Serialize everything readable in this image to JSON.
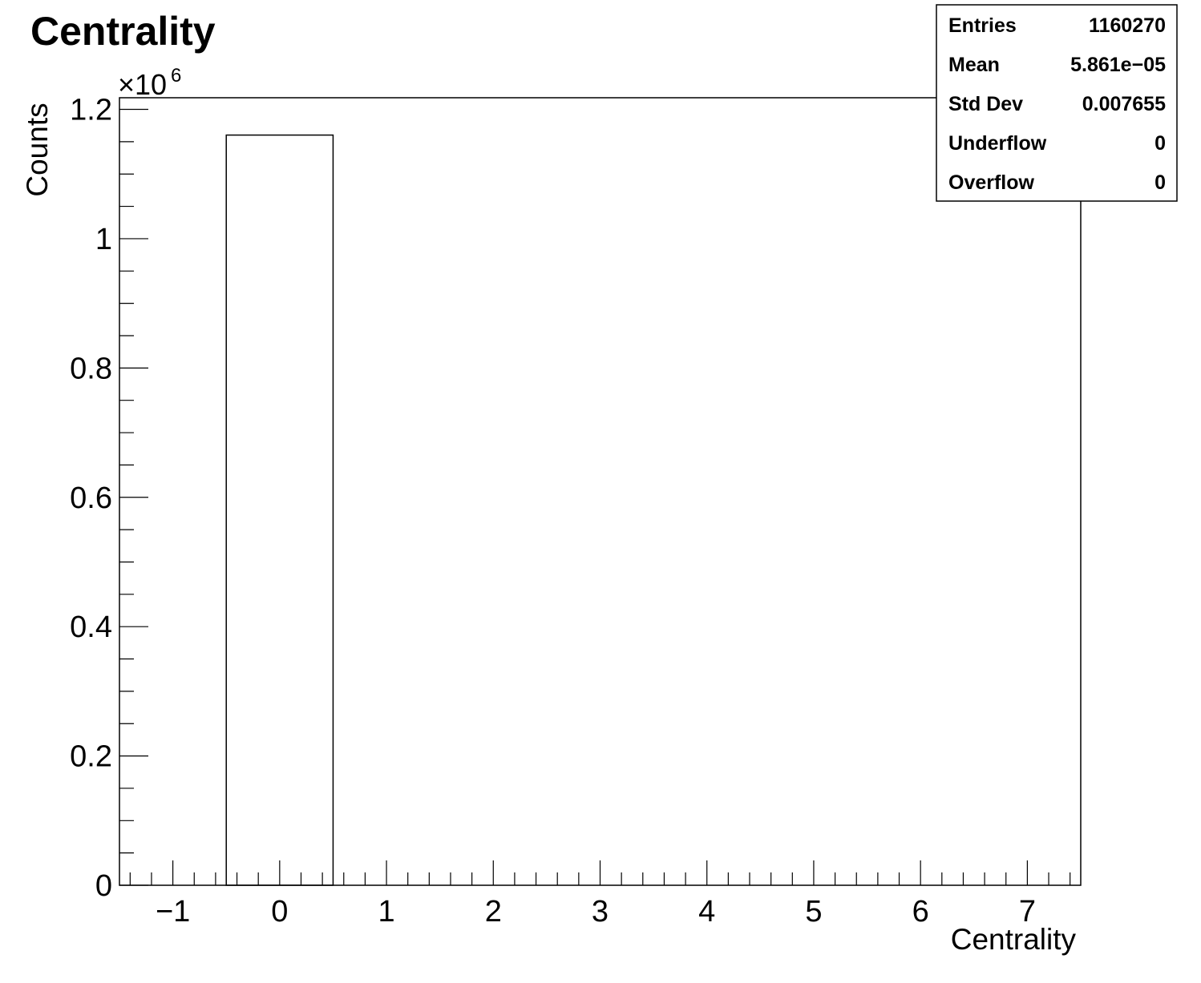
{
  "chart_data": {
    "type": "bar",
    "title": "Centrality",
    "xlabel": "Centrality",
    "ylabel": "Counts",
    "y_multiplier_base": "×10",
    "y_multiplier_exponent": "6",
    "xlim": [
      -1.5,
      7.5
    ],
    "ylim": [
      0,
      1.218
    ],
    "grid": false,
    "bins": [
      {
        "low": -0.5,
        "high": 0.5,
        "value": 1.16027
      }
    ],
    "x_ticks": [
      {
        "value": -1,
        "label": "−1"
      },
      {
        "value": 0,
        "label": "0"
      },
      {
        "value": 1,
        "label": "1"
      },
      {
        "value": 2,
        "label": "2"
      },
      {
        "value": 3,
        "label": "3"
      },
      {
        "value": 4,
        "label": "4"
      },
      {
        "value": 5,
        "label": "5"
      },
      {
        "value": 6,
        "label": "6"
      },
      {
        "value": 7,
        "label": "7"
      }
    ],
    "y_ticks": [
      {
        "value": 0,
        "label": "0"
      },
      {
        "value": 0.2,
        "label": "0.2"
      },
      {
        "value": 0.4,
        "label": "0.4"
      },
      {
        "value": 0.6,
        "label": "0.6"
      },
      {
        "value": 0.8,
        "label": "0.8"
      },
      {
        "value": 1.0,
        "label": "1"
      },
      {
        "value": 1.2,
        "label": "1.2"
      }
    ],
    "stats_box": {
      "placement": "top-right",
      "rows": [
        {
          "label": "Entries",
          "value": "1160270"
        },
        {
          "label": "Mean",
          "value": "5.861e−05"
        },
        {
          "label": "Std Dev",
          "value": "0.007655"
        },
        {
          "label": "Underflow",
          "value": "0"
        },
        {
          "label": "Overflow",
          "value": "0"
        }
      ]
    },
    "colors": {
      "line": "#000000",
      "background": "#ffffff"
    }
  }
}
